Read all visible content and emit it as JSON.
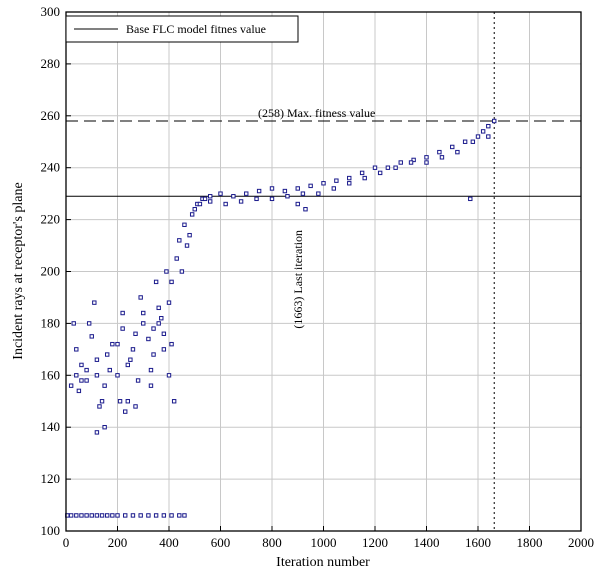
{
  "chart_data": {
    "type": "scatter",
    "xlabel": "Iteration number",
    "ylabel": "Incident rays at receptor's plane",
    "xlim": [
      0,
      2000
    ],
    "ylim": [
      100,
      300
    ],
    "x_ticks": [
      "0",
      "200",
      "400",
      "600",
      "800",
      "1000",
      "1200",
      "1400",
      "1600",
      "1800",
      "2000"
    ],
    "y_ticks": [
      "100",
      "120",
      "140",
      "160",
      "180",
      "200",
      "220",
      "240",
      "260",
      "280",
      "300"
    ],
    "grid": true,
    "legend": {
      "placement": "top-left",
      "entries": [
        "Base FLC model fitnes value"
      ]
    },
    "reference_lines": {
      "base_fitness_y": 229,
      "max_fitness_y": 258,
      "last_iteration_x": 1663
    },
    "annotations": {
      "max_fitness": "(258)  Max. fitness value",
      "last_iteration": "(1663)  Last iteration"
    },
    "marker_color": "#1a1a8c",
    "series": [
      {
        "marker": "open-square",
        "x": [
          5,
          20,
          40,
          60,
          80,
          100,
          120,
          140,
          160,
          180,
          200,
          230,
          260,
          290,
          320,
          350,
          380,
          410,
          440,
          460,
          20,
          40,
          60,
          80,
          100,
          120,
          140,
          160,
          180,
          200,
          220,
          240,
          260,
          280,
          300,
          320,
          340,
          360,
          380,
          400,
          50,
          90,
          130,
          170,
          210,
          250,
          290,
          330,
          370,
          410,
          30,
          110,
          150,
          230,
          270,
          350,
          390,
          120,
          220,
          340,
          40,
          60,
          80,
          120,
          150,
          200,
          240,
          270,
          300,
          330,
          360,
          380,
          400,
          410,
          420,
          430,
          440,
          450,
          460,
          470,
          480,
          490,
          500,
          510,
          520,
          530,
          540,
          560,
          600,
          650,
          700,
          750,
          800,
          850,
          900,
          950,
          1000,
          1050,
          1100,
          1150,
          1200,
          1250,
          1300,
          1350,
          1400,
          1450,
          1500,
          1550,
          1600,
          1620,
          1640,
          1663,
          560,
          620,
          680,
          740,
          800,
          860,
          920,
          980,
          1040,
          1100,
          1160,
          1220,
          1280,
          1340,
          1400,
          1460,
          1520,
          1580,
          1640,
          1570,
          900,
          930
        ],
        "y": [
          106,
          106,
          106,
          106,
          106,
          106,
          106,
          106,
          106,
          106,
          106,
          106,
          106,
          106,
          106,
          106,
          106,
          106,
          106,
          106,
          156,
          170,
          164,
          158,
          175,
          160,
          150,
          168,
          172,
          160,
          178,
          164,
          170,
          158,
          180,
          174,
          168,
          186,
          176,
          160,
          154,
          180,
          148,
          162,
          150,
          166,
          190,
          156,
          182,
          172,
          180,
          188,
          140,
          146,
          148,
          196,
          200,
          138,
          184,
          178,
          160,
          158,
          162,
          166,
          156,
          172,
          150,
          176,
          184,
          162,
          180,
          170,
          188,
          196,
          150,
          205,
          212,
          200,
          218,
          210,
          214,
          222,
          224,
          226,
          226,
          228,
          228,
          229,
          230,
          229,
          230,
          231,
          232,
          231,
          232,
          233,
          234,
          235,
          236,
          238,
          240,
          240,
          242,
          243,
          244,
          246,
          248,
          250,
          252,
          254,
          256,
          258,
          227,
          226,
          227,
          228,
          228,
          229,
          230,
          230,
          232,
          234,
          236,
          238,
          240,
          242,
          242,
          244,
          246,
          250,
          252,
          228,
          226,
          224
        ]
      }
    ]
  }
}
